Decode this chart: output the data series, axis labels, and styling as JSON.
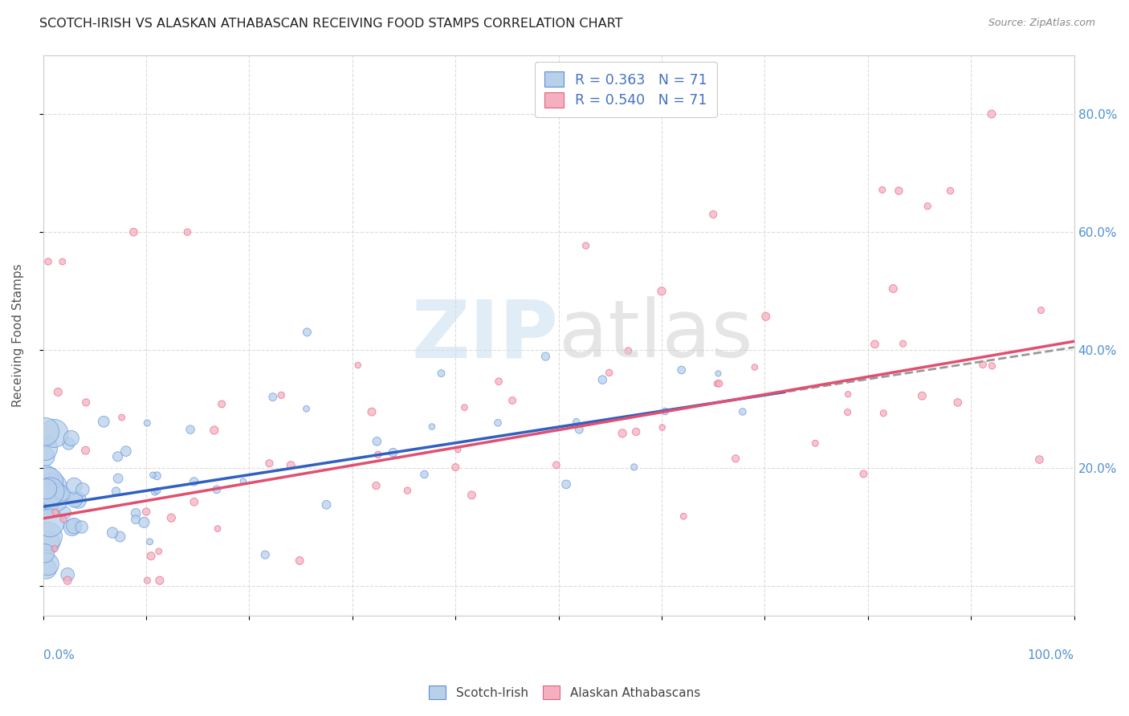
{
  "title": "SCOTCH-IRISH VS ALASKAN ATHABASCAN RECEIVING FOOD STAMPS CORRELATION CHART",
  "source": "Source: ZipAtlas.com",
  "ylabel": "Receiving Food Stamps",
  "watermark_zip": "ZIP",
  "watermark_atlas": "atlas",
  "xlim": [
    0.0,
    1.0
  ],
  "ylim": [
    -0.05,
    0.9
  ],
  "ytick_vals": [
    0.0,
    0.2,
    0.4,
    0.6,
    0.8
  ],
  "ytick_labels": [
    "",
    "20.0%",
    "40.0%",
    "60.0%",
    "80.0%"
  ],
  "scotch_irish_R": 0.363,
  "scotch_irish_N": 71,
  "alaskan_R": 0.54,
  "alaskan_N": 71,
  "scotch_irish_fill": "#b8d0ea",
  "scotch_irish_edge": "#5b8dd9",
  "alaskan_fill": "#f5b0c0",
  "alaskan_edge": "#e06080",
  "blue_line_color": "#3060c0",
  "pink_line_color": "#e05070",
  "gray_dash_color": "#999999",
  "legend_text_color": "#4472c4",
  "title_color": "#222222",
  "source_color": "#888888",
  "ylabel_color": "#555555",
  "tick_label_color": "#5090d0",
  "grid_color": "#d8d8d8",
  "si_line_m": 0.27,
  "si_line_b": 0.135,
  "si_line_xmax": 0.72,
  "ak_line_m": 0.3,
  "ak_line_b": 0.115
}
